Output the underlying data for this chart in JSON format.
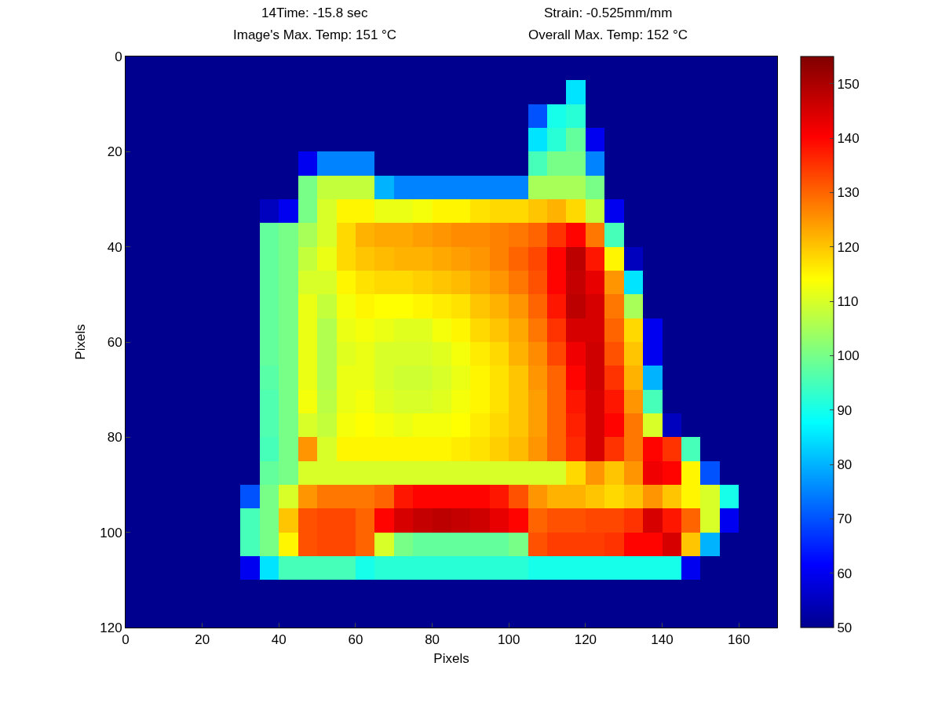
{
  "chart_data": {
    "type": "heatmap",
    "annotations": [
      "14Time: -15.8 sec",
      "Strain: -0.525mm/mm",
      "Image's Max. Temp: 151 °C",
      "Overall Max. Temp: 152 °C"
    ],
    "xlabel": "Pixels",
    "ylabel": "Pixels",
    "xlim": [
      0,
      170
    ],
    "ylim": [
      120,
      0
    ],
    "xticks": [
      0,
      20,
      40,
      60,
      80,
      100,
      120,
      140,
      160
    ],
    "yticks": [
      0,
      20,
      40,
      60,
      80,
      100,
      120
    ],
    "clim": [
      50,
      155
    ],
    "cticks": [
      50,
      60,
      70,
      80,
      90,
      100,
      110,
      120,
      130,
      140,
      150
    ],
    "cells": [
      [
        50,
        50,
        50,
        50,
        50,
        50,
        50,
        50,
        50,
        50,
        50,
        50,
        50,
        50,
        50,
        50,
        50,
        50,
        50,
        50,
        50,
        50,
        50,
        50,
        50,
        50,
        50,
        50,
        50,
        50,
        50,
        50,
        50,
        50
      ],
      [
        50,
        50,
        50,
        50,
        50,
        50,
        50,
        50,
        50,
        50,
        50,
        50,
        50,
        50,
        50,
        50,
        50,
        50,
        50,
        50,
        50,
        50,
        50,
        85,
        50,
        50,
        50,
        50,
        50,
        50,
        50,
        50,
        50,
        50
      ],
      [
        50,
        50,
        50,
        50,
        50,
        50,
        50,
        50,
        50,
        50,
        50,
        50,
        50,
        50,
        50,
        50,
        50,
        50,
        50,
        50,
        50,
        70,
        90,
        92,
        50,
        50,
        50,
        50,
        50,
        50,
        50,
        50,
        50,
        50
      ],
      [
        50,
        50,
        50,
        50,
        50,
        50,
        50,
        50,
        50,
        50,
        50,
        50,
        50,
        50,
        50,
        50,
        50,
        50,
        50,
        50,
        50,
        85,
        92,
        98,
        60,
        50,
        50,
        50,
        50,
        50,
        50,
        50,
        50,
        50
      ],
      [
        50,
        50,
        50,
        50,
        50,
        50,
        50,
        50,
        50,
        60,
        75,
        75,
        75,
        50,
        50,
        50,
        50,
        50,
        50,
        50,
        50,
        95,
        100,
        100,
        75,
        50,
        50,
        50,
        50,
        50,
        50,
        50,
        50,
        50
      ],
      [
        50,
        50,
        50,
        50,
        50,
        50,
        50,
        50,
        50,
        100,
        108,
        108,
        108,
        80,
        75,
        75,
        75,
        75,
        75,
        75,
        75,
        105,
        105,
        105,
        100,
        50,
        50,
        50,
        50,
        50,
        50,
        50,
        50,
        50
      ],
      [
        50,
        50,
        50,
        50,
        50,
        50,
        50,
        55,
        60,
        100,
        110,
        115,
        115,
        112,
        112,
        113,
        115,
        115,
        117,
        118,
        118,
        120,
        122,
        118,
        108,
        60,
        50,
        50,
        50,
        50,
        50,
        50,
        50,
        50
      ],
      [
        50,
        50,
        50,
        50,
        50,
        50,
        50,
        98,
        100,
        105,
        110,
        118,
        122,
        123,
        123,
        124,
        125,
        126,
        126,
        127,
        128,
        130,
        135,
        140,
        128,
        95,
        50,
        50,
        50,
        50,
        50,
        50,
        50,
        50
      ],
      [
        50,
        50,
        50,
        50,
        50,
        50,
        50,
        98,
        100,
        108,
        112,
        118,
        120,
        121,
        122,
        122,
        123,
        124,
        125,
        127,
        130,
        133,
        140,
        148,
        138,
        115,
        55,
        50,
        50,
        50,
        50,
        50,
        50,
        50
      ],
      [
        50,
        50,
        50,
        50,
        50,
        50,
        50,
        98,
        100,
        110,
        110,
        115,
        117,
        118,
        118,
        119,
        120,
        121,
        123,
        125,
        128,
        132,
        140,
        147,
        143,
        125,
        85,
        50,
        50,
        50,
        50,
        50,
        50,
        50
      ],
      [
        50,
        50,
        50,
        50,
        50,
        50,
        50,
        98,
        100,
        112,
        108,
        113,
        115,
        114,
        114,
        115,
        116,
        117,
        120,
        122,
        125,
        130,
        138,
        148,
        145,
        128,
        105,
        50,
        50,
        50,
        50,
        50,
        50,
        50
      ],
      [
        50,
        50,
        50,
        50,
        50,
        50,
        50,
        98,
        100,
        112,
        106,
        112,
        113,
        112,
        111,
        111,
        113,
        115,
        118,
        120,
        123,
        128,
        135,
        145,
        145,
        130,
        118,
        60,
        50,
        50,
        50,
        50,
        50,
        50
      ],
      [
        50,
        50,
        50,
        50,
        50,
        50,
        50,
        98,
        100,
        112,
        106,
        111,
        112,
        110,
        110,
        110,
        111,
        113,
        116,
        118,
        122,
        126,
        133,
        142,
        146,
        132,
        120,
        60,
        50,
        50,
        50,
        50,
        50,
        50
      ],
      [
        50,
        50,
        50,
        50,
        50,
        50,
        50,
        97,
        100,
        112,
        106,
        112,
        112,
        110,
        109,
        109,
        110,
        112,
        115,
        117,
        120,
        125,
        130,
        140,
        146,
        135,
        122,
        80,
        50,
        50,
        50,
        50,
        50,
        50
      ],
      [
        50,
        50,
        50,
        50,
        50,
        50,
        50,
        96,
        100,
        113,
        107,
        112,
        113,
        111,
        110,
        110,
        111,
        113,
        115,
        117,
        120,
        124,
        130,
        138,
        145,
        138,
        125,
        95,
        50,
        50,
        50,
        50,
        50,
        50
      ],
      [
        50,
        50,
        50,
        50,
        50,
        50,
        50,
        96,
        100,
        110,
        108,
        113,
        114,
        113,
        112,
        113,
        113,
        114,
        116,
        118,
        120,
        124,
        130,
        137,
        145,
        140,
        128,
        110,
        55,
        50,
        50,
        50,
        50,
        50
      ],
      [
        50,
        50,
        50,
        50,
        50,
        50,
        50,
        95,
        100,
        125,
        110,
        115,
        115,
        115,
        115,
        115,
        115,
        116,
        117,
        119,
        121,
        125,
        130,
        136,
        145,
        135,
        128,
        140,
        135,
        95,
        50,
        50,
        50,
        50
      ],
      [
        50,
        50,
        50,
        50,
        50,
        50,
        50,
        98,
        100,
        110,
        110,
        110,
        110,
        110,
        110,
        110,
        110,
        110,
        110,
        110,
        110,
        110,
        110,
        118,
        125,
        120,
        125,
        142,
        140,
        115,
        70,
        50,
        50,
        50
      ],
      [
        50,
        50,
        50,
        50,
        50,
        50,
        70,
        100,
        110,
        125,
        128,
        128,
        128,
        130,
        138,
        140,
        140,
        140,
        140,
        138,
        132,
        125,
        122,
        122,
        120,
        118,
        120,
        125,
        120,
        115,
        110,
        90,
        50,
        50
      ],
      [
        50,
        50,
        50,
        50,
        50,
        50,
        95,
        100,
        120,
        132,
        133,
        133,
        130,
        140,
        145,
        147,
        148,
        147,
        146,
        143,
        140,
        130,
        132,
        132,
        133,
        133,
        135,
        145,
        138,
        130,
        110,
        60,
        50,
        50
      ],
      [
        50,
        50,
        50,
        50,
        50,
        50,
        95,
        100,
        115,
        132,
        133,
        133,
        130,
        110,
        100,
        98,
        98,
        98,
        98,
        98,
        100,
        132,
        134,
        134,
        134,
        135,
        140,
        140,
        145,
        120,
        80,
        50,
        50,
        50
      ],
      [
        50,
        50,
        50,
        50,
        50,
        50,
        60,
        85,
        95,
        95,
        95,
        95,
        90,
        92,
        92,
        92,
        92,
        92,
        92,
        92,
        92,
        90,
        90,
        90,
        90,
        90,
        90,
        90,
        90,
        60,
        50,
        50,
        50,
        50
      ],
      [
        50,
        50,
        50,
        50,
        50,
        50,
        50,
        50,
        50,
        50,
        50,
        50,
        50,
        50,
        50,
        50,
        50,
        50,
        50,
        50,
        50,
        50,
        50,
        50,
        50,
        50,
        50,
        50,
        50,
        50,
        50,
        50,
        50,
        50
      ],
      [
        50,
        50,
        50,
        50,
        50,
        50,
        50,
        50,
        50,
        50,
        50,
        50,
        50,
        50,
        50,
        50,
        50,
        50,
        50,
        50,
        50,
        50,
        50,
        50,
        50,
        50,
        50,
        50,
        50,
        50,
        50,
        50,
        50,
        50
      ]
    ]
  }
}
